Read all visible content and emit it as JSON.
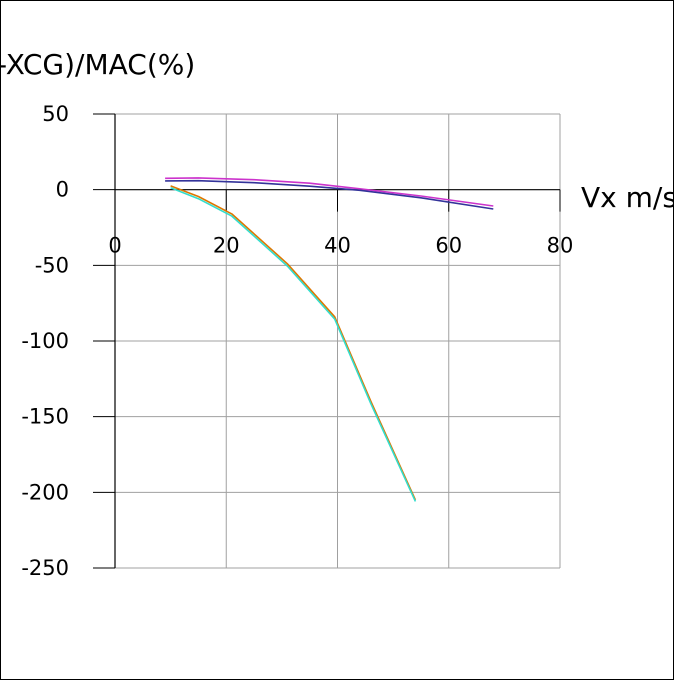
{
  "chart_data": {
    "type": "line",
    "title": "",
    "ylabel": "-XCG)/MAC(%)",
    "xlabel": "Vx m/s",
    "xlim": [
      0,
      80
    ],
    "ylim": [
      -250,
      50
    ],
    "x_ticks": [
      0,
      20,
      40,
      60,
      80
    ],
    "y_ticks": [
      50,
      0,
      -50,
      -100,
      -150,
      -200,
      -250
    ],
    "grid": true,
    "legend": "none",
    "series": [
      {
        "color": "#cc33cc",
        "points": [
          [
            9,
            7.5
          ],
          [
            15,
            7.8
          ],
          [
            25,
            6.6
          ],
          [
            35,
            4.3
          ],
          [
            44,
            0.6
          ],
          [
            55,
            -4.2
          ],
          [
            68,
            -10.8
          ]
        ]
      },
      {
        "color": "#33339a",
        "points": [
          [
            9,
            5.8
          ],
          [
            15,
            5.9
          ],
          [
            25,
            4.6
          ],
          [
            35,
            2.3
          ],
          [
            44,
            -0.4
          ],
          [
            55,
            -5.4
          ],
          [
            68,
            -12.8
          ]
        ]
      },
      {
        "color": "#dd7700",
        "points": [
          [
            10,
            2.5
          ],
          [
            15,
            -4.5
          ],
          [
            21,
            -16
          ],
          [
            31,
            -49
          ],
          [
            39.5,
            -84
          ],
          [
            46,
            -140
          ],
          [
            54,
            -205
          ]
        ]
      },
      {
        "color": "#33ddcc",
        "points": [
          [
            10,
            1.3
          ],
          [
            15,
            -6
          ],
          [
            21,
            -17.5
          ],
          [
            31,
            -50.5
          ],
          [
            39.5,
            -85.5
          ],
          [
            46,
            -141.5
          ],
          [
            54,
            -206
          ]
        ]
      }
    ]
  }
}
